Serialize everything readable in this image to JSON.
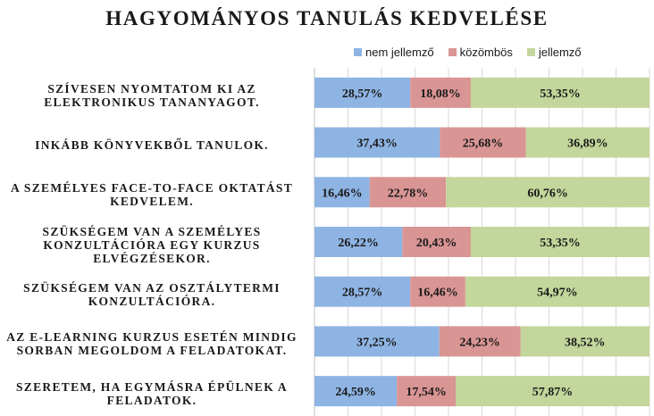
{
  "chart_data": {
    "type": "bar",
    "orientation": "horizontal",
    "stacked": true,
    "title": "HAGYOMÁNYOS TANULÁS KEDVELÉSE",
    "legend_position": "top-right",
    "grid": "vertical",
    "xlim": [
      0,
      100
    ],
    "categories": [
      "SZÍVESEN NYOMTATOM KI AZ ELEKTRONIKUS TANANYAGOT.",
      "INKÁBB KÖNYVEKBŐL TANULOK.",
      "A SZEMÉLYES FACE-TO-FACE OKTATÁST KEDVELEM.",
      "SZÜKSÉGEM VAN A SZEMÉLYES KONZULTÁCIÓRA EGY KURZUS ELVÉGZÉSEKOR.",
      "SZÜKSÉGEM VAN AZ OSZTÁLYTERMI KONZULTÁCIÓRA.",
      "AZ E-LEARNING KURZUS ESETÉN MINDIG SORBAN MEGOLDOM A FELADATOKAT.",
      "SZERETEM, HA EGYMÁSRA ÉPÜLNEK A FELADATOK."
    ],
    "series": [
      {
        "name": "nem jellemző",
        "color": "#8eb4e3",
        "values": [
          28.57,
          37.43,
          16.46,
          26.22,
          28.57,
          37.25,
          24.59
        ],
        "labels": [
          "28,57%",
          "37,43%",
          "16,46%",
          "26,22%",
          "28,57%",
          "37,25%",
          "24,59%"
        ]
      },
      {
        "name": "közömbös",
        "color": "#d99594",
        "values": [
          18.08,
          25.68,
          22.78,
          20.43,
          16.46,
          24.23,
          17.54
        ],
        "labels": [
          "18,08%",
          "25,68%",
          "22,78%",
          "20,43%",
          "16,46%",
          "24,23%",
          "17,54%"
        ]
      },
      {
        "name": "jellemző",
        "color": "#c3d69b",
        "values": [
          53.35,
          36.89,
          60.76,
          53.35,
          54.97,
          38.52,
          57.87
        ],
        "labels": [
          "53,35%",
          "36,89%",
          "60,76%",
          "53,35%",
          "54,97%",
          "38,52%",
          "57,87%"
        ]
      }
    ]
  }
}
